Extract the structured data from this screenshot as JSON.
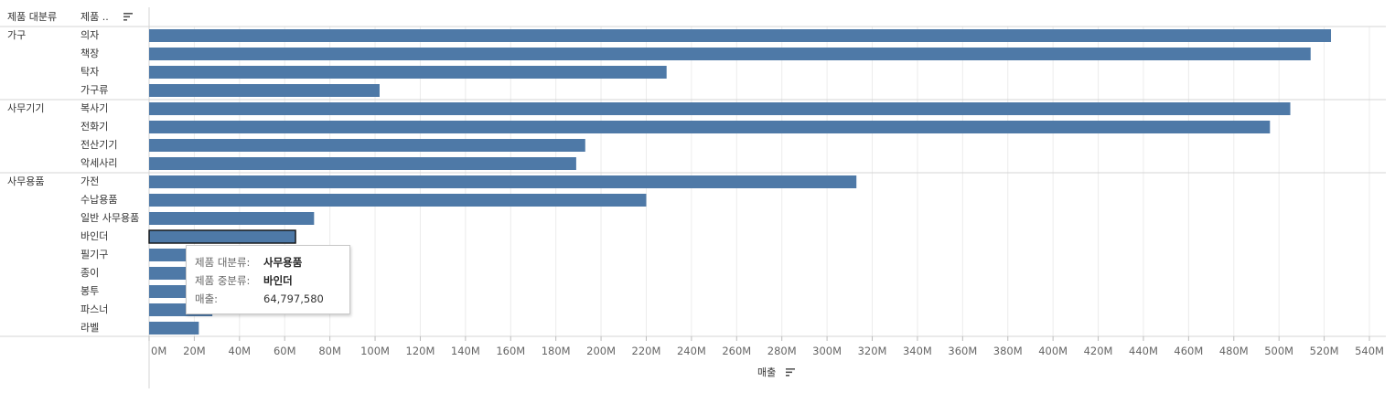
{
  "headers": {
    "category": "제품 대분류",
    "subcategory": "제품 ..",
    "sort_icon": "sort-descending-icon"
  },
  "colors": {
    "bar": "#4e79a7",
    "grid": "#ececec",
    "divider": "#d4d4d4"
  },
  "chart_data": {
    "type": "bar",
    "orientation": "horizontal",
    "groups": [
      {
        "name": "가구",
        "items": [
          {
            "label": "의자",
            "value": 523
          },
          {
            "label": "책장",
            "value": 514
          },
          {
            "label": "탁자",
            "value": 229
          },
          {
            "label": "가구류",
            "value": 102
          }
        ]
      },
      {
        "name": "사무기기",
        "items": [
          {
            "label": "복사기",
            "value": 505
          },
          {
            "label": "전화기",
            "value": 496
          },
          {
            "label": "전산기기",
            "value": 193
          },
          {
            "label": "악세사리",
            "value": 189
          }
        ]
      },
      {
        "name": "사무용품",
        "items": [
          {
            "label": "가전",
            "value": 313
          },
          {
            "label": "수납용품",
            "value": 220
          },
          {
            "label": "일반 사무용품",
            "value": 73
          },
          {
            "label": "바인더",
            "value": 64.8,
            "highlighted": true
          },
          {
            "label": "필기구",
            "value": 27
          },
          {
            "label": "종이",
            "value": 27
          },
          {
            "label": "봉투",
            "value": 27
          },
          {
            "label": "파스너",
            "value": 28
          },
          {
            "label": "라벨",
            "value": 22
          }
        ]
      }
    ],
    "x_unit": "M",
    "xlabel": "매출",
    "xlim": [
      0,
      540
    ],
    "ticks": [
      "0M",
      "20M",
      "40M",
      "60M",
      "80M",
      "100M",
      "120M",
      "140M",
      "160M",
      "180M",
      "200M",
      "220M",
      "240M",
      "260M",
      "280M",
      "300M",
      "320M",
      "340M",
      "360M",
      "380M",
      "400M",
      "420M",
      "440M",
      "460M",
      "480M",
      "500M",
      "520M",
      "540M"
    ],
    "grid": true
  },
  "tooltip": {
    "rows": [
      {
        "key": "제품 대분류:",
        "value": "사무용품"
      },
      {
        "key": "제품 중분류:",
        "value": "바인더"
      },
      {
        "key": "매출:",
        "value": "64,797,580"
      }
    ]
  }
}
